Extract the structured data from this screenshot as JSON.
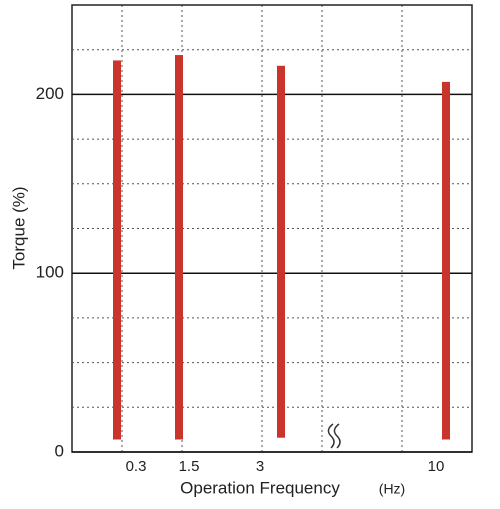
{
  "chart_data": {
    "type": "range-bar",
    "y_label": "Torque (%)",
    "x_label": "Operation Frequency",
    "x_unit": "(Hz)",
    "categories": [
      "0.3",
      "1.5",
      "3",
      "10"
    ],
    "series": [
      {
        "color": "#c9352c",
        "low": [
          7,
          7,
          8,
          7
        ],
        "values": [
          219,
          222,
          216,
          207
        ]
      }
    ],
    "ylim": [
      0,
      250
    ],
    "yticks": [
      0,
      100,
      200
    ],
    "minor_yticks": [
      25,
      50,
      75,
      125,
      150,
      175,
      225
    ],
    "grid": true
  }
}
